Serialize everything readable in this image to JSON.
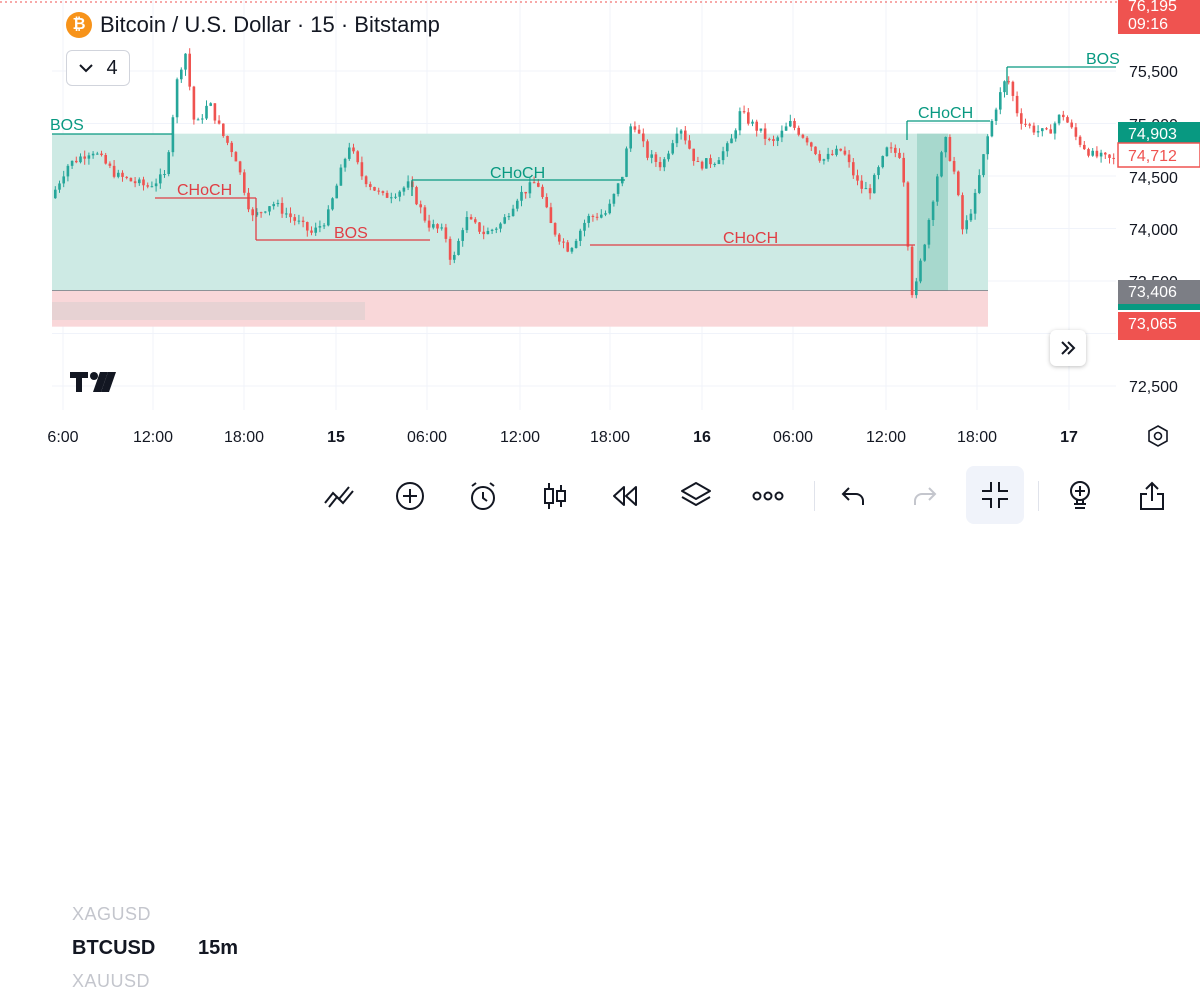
{
  "header": {
    "title": "Bitcoin / U.S. Dollar · 15 · Bitstamp",
    "indicators_count": "4"
  },
  "chart_data": {
    "type": "candlestick",
    "symbol": "BTCUSD",
    "interval": "15",
    "exchange": "Bitstamp",
    "y_ticks": [
      "75,500",
      "75,000",
      "74,500",
      "74,000",
      "73,500",
      "72,500"
    ],
    "x_ticks": [
      {
        "label": "6:00",
        "bold": false
      },
      {
        "label": "12:00",
        "bold": false
      },
      {
        "label": "18:00",
        "bold": false
      },
      {
        "label": "15",
        "bold": true
      },
      {
        "label": "06:00",
        "bold": false
      },
      {
        "label": "12:00",
        "bold": false
      },
      {
        "label": "18:00",
        "bold": false
      },
      {
        "label": "16",
        "bold": true
      },
      {
        "label": "06:00",
        "bold": false
      },
      {
        "label": "12:00",
        "bold": false
      },
      {
        "label": "18:00",
        "bold": false
      },
      {
        "label": "17",
        "bold": true
      }
    ],
    "price_labels": {
      "top_price": "76,195",
      "countdown": "09:16",
      "zone_top": "74,903",
      "last_price": "74,712",
      "zone_bottom": "73,406",
      "support_level": "73,065"
    },
    "structure_labels": [
      {
        "text": "BOS",
        "type": "bullish"
      },
      {
        "text": "CHoCH",
        "type": "bearish"
      },
      {
        "text": "BOS",
        "type": "bearish"
      },
      {
        "text": "CHoCH",
        "type": "bullish"
      },
      {
        "text": "CHoCH",
        "type": "bearish"
      },
      {
        "text": "CHoCH",
        "type": "bullish"
      },
      {
        "text": "BOS",
        "type": "bullish"
      }
    ],
    "colors": {
      "up": "#26a69a",
      "down": "#ef5350",
      "zone_green": "#cdeae4",
      "zone_red": "#f9d7d9",
      "grid": "#f0f3fa"
    }
  },
  "toolbar": {
    "symbol_prev": "XAGUSD",
    "symbol": "BTCUSD",
    "symbol_next": "XAUUSD",
    "timeframe": "15m",
    "icons": [
      "drawings-icon",
      "add-icon",
      "alert-clock-icon",
      "candles-icon",
      "replay-icon",
      "layers-icon",
      "more-icon",
      "undo-icon",
      "redo-icon",
      "exit-fullscreen-icon",
      "idea-bulb-icon",
      "share-icon"
    ]
  }
}
